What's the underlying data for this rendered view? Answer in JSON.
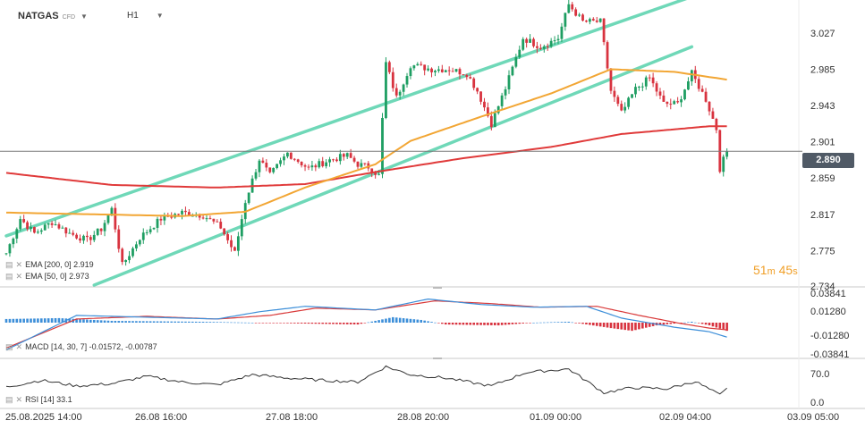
{
  "header": {
    "symbol": "NATGAS",
    "instrument_type": "CFD",
    "timeframe": "H1"
  },
  "price_panel": {
    "current_price": "2.890",
    "y_ticks": [
      "3.027",
      "2.985",
      "2.943",
      "2.901",
      "2.859",
      "2.817",
      "2.775",
      "2.734"
    ],
    "ema200_label": "EMA [200, 0] 2.919",
    "ema50_label": "EMA [50, 0] 2.973",
    "countdown_minutes": "51",
    "countdown_minutes_unit": "m",
    "countdown_seconds": "45",
    "countdown_seconds_unit": "s"
  },
  "macd_panel": {
    "label": "MACD [14, 30, 7] -0.01572, -0.00787",
    "y_ticks": [
      "0.03841",
      "0.01280",
      "-0.01280",
      "-0.03841"
    ]
  },
  "rsi_panel": {
    "label": "RSI [14] 33.1",
    "y_ticks": [
      "70.0",
      "0.0"
    ]
  },
  "x_axis_labels": [
    "25.08.2025 14:00",
    "26.08 16:00",
    "27.08 18:00",
    "28.08 20:00",
    "01.09 00:00",
    "02.09 04:00",
    "03.09 05:00"
  ],
  "colors": {
    "up": "#1e9e62",
    "down": "#d8333f",
    "ema200": "#e03a3a",
    "ema50": "#f2a634",
    "channel": "#6fd8b8",
    "macd_line": "#3d8fd9",
    "signal_line": "#d93a3a"
  },
  "chart_data": {
    "type": "candlestick",
    "y_range": [
      2.734,
      3.06
    ],
    "keypoints": [
      [
        0,
        2.772
      ],
      [
        4,
        2.812
      ],
      [
        8,
        2.795
      ],
      [
        13,
        2.808
      ],
      [
        18,
        2.795
      ],
      [
        23,
        2.787
      ],
      [
        27,
        2.8
      ],
      [
        30,
        2.823
      ],
      [
        33,
        2.758
      ],
      [
        38,
        2.79
      ],
      [
        44,
        2.812
      ],
      [
        50,
        2.819
      ],
      [
        56,
        2.816
      ],
      [
        61,
        2.802
      ],
      [
        65,
        2.772
      ],
      [
        68,
        2.832
      ],
      [
        72,
        2.881
      ],
      [
        75,
        2.862
      ],
      [
        80,
        2.888
      ],
      [
        86,
        2.87
      ],
      [
        92,
        2.88
      ],
      [
        97,
        2.885
      ],
      [
        100,
        2.875
      ],
      [
        103,
        2.872
      ],
      [
        106,
        2.862
      ],
      [
        108,
        2.992
      ],
      [
        111,
        2.952
      ],
      [
        115,
        2.99
      ],
      [
        121,
        2.985
      ],
      [
        126,
        2.985
      ],
      [
        131,
        2.98
      ],
      [
        134,
        2.96
      ],
      [
        138,
        2.922
      ],
      [
        142,
        2.963
      ],
      [
        147,
        3.021
      ],
      [
        152,
        3.011
      ],
      [
        157,
        3.021
      ],
      [
        160,
        3.06
      ],
      [
        164,
        3.04
      ],
      [
        169,
        3.04
      ],
      [
        172,
        2.96
      ],
      [
        175,
        2.934
      ],
      [
        179,
        2.962
      ],
      [
        183,
        2.975
      ],
      [
        187,
        2.945
      ],
      [
        191,
        2.945
      ],
      [
        195,
        2.98
      ],
      [
        199,
        2.95
      ],
      [
        202,
        2.916
      ],
      [
        203,
        2.87
      ],
      [
        205,
        2.89
      ]
    ],
    "ema200_points": [
      [
        0,
        2.865
      ],
      [
        30,
        2.851
      ],
      [
        60,
        2.848
      ],
      [
        85,
        2.852
      ],
      [
        105,
        2.866
      ],
      [
        130,
        2.882
      ],
      [
        155,
        2.895
      ],
      [
        175,
        2.91
      ],
      [
        200,
        2.919
      ],
      [
        205,
        2.919
      ]
    ],
    "ema50_points": [
      [
        0,
        2.819
      ],
      [
        25,
        2.817
      ],
      [
        50,
        2.815
      ],
      [
        68,
        2.82
      ],
      [
        85,
        2.848
      ],
      [
        105,
        2.875
      ],
      [
        115,
        2.902
      ],
      [
        135,
        2.93
      ],
      [
        155,
        2.957
      ],
      [
        172,
        2.985
      ],
      [
        190,
        2.982
      ],
      [
        205,
        2.973
      ]
    ],
    "channel_upper": [
      [
        0,
        2.792
      ],
      [
        195,
        3.069
      ]
    ],
    "channel_lower": [
      [
        25,
        2.735
      ],
      [
        195,
        3.011
      ]
    ],
    "macd_hist_keypoints": [
      [
        0,
        0.004
      ],
      [
        15,
        0.005
      ],
      [
        30,
        0.002
      ],
      [
        55,
        0.001
      ],
      [
        85,
        -0.001
      ],
      [
        100,
        -0.002
      ],
      [
        110,
        0.006
      ],
      [
        118,
        0.003
      ],
      [
        125,
        -0.002
      ],
      [
        140,
        -0.003
      ],
      [
        150,
        0.0
      ],
      [
        160,
        0.001
      ],
      [
        172,
        -0.006
      ],
      [
        178,
        -0.009
      ],
      [
        185,
        -0.003
      ],
      [
        195,
        0.001
      ],
      [
        200,
        -0.003
      ],
      [
        205,
        -0.009
      ]
    ],
    "macd_line_keypoints": [
      [
        0,
        -0.03
      ],
      [
        20,
        0.008
      ],
      [
        40,
        0.006
      ],
      [
        60,
        0.004
      ],
      [
        72,
        0.012
      ],
      [
        85,
        0.018
      ],
      [
        105,
        0.014
      ],
      [
        120,
        0.026
      ],
      [
        135,
        0.02
      ],
      [
        150,
        0.017
      ],
      [
        165,
        0.018
      ],
      [
        175,
        0.005
      ],
      [
        190,
        -0.005
      ],
      [
        200,
        -0.01
      ],
      [
        205,
        -0.016
      ]
    ],
    "signal_line_keypoints": [
      [
        0,
        -0.028
      ],
      [
        20,
        0.004
      ],
      [
        40,
        0.007
      ],
      [
        60,
        0.004
      ],
      [
        75,
        0.008
      ],
      [
        88,
        0.016
      ],
      [
        105,
        0.014
      ],
      [
        122,
        0.024
      ],
      [
        138,
        0.021
      ],
      [
        152,
        0.017
      ],
      [
        168,
        0.018
      ],
      [
        180,
        0.008
      ],
      [
        192,
        -0.001
      ],
      [
        200,
        -0.006
      ],
      [
        205,
        -0.008
      ]
    ],
    "rsi_keypoints": [
      [
        0,
        36
      ],
      [
        10,
        48
      ],
      [
        20,
        38
      ],
      [
        30,
        42
      ],
      [
        40,
        55
      ],
      [
        50,
        45
      ],
      [
        60,
        40
      ],
      [
        70,
        58
      ],
      [
        80,
        52
      ],
      [
        90,
        48
      ],
      [
        100,
        45
      ],
      [
        108,
        72
      ],
      [
        115,
        58
      ],
      [
        125,
        52
      ],
      [
        138,
        38
      ],
      [
        148,
        62
      ],
      [
        160,
        68
      ],
      [
        170,
        26
      ],
      [
        178,
        35
      ],
      [
        188,
        33
      ],
      [
        196,
        46
      ],
      [
        203,
        22
      ],
      [
        205,
        33
      ]
    ]
  }
}
